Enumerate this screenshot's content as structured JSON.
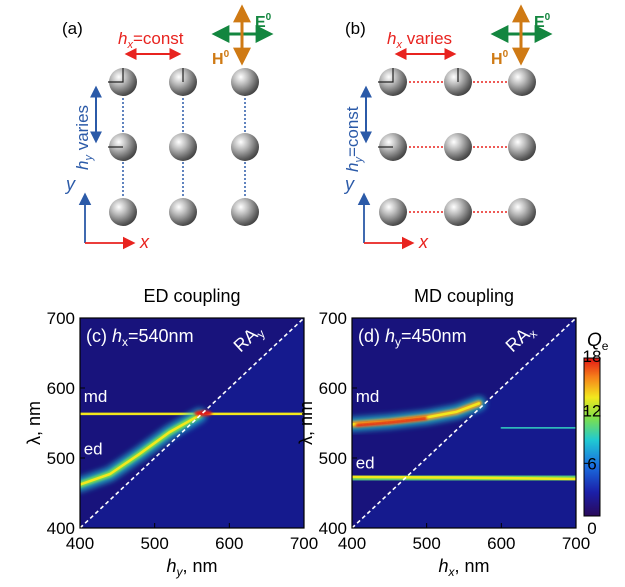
{
  "panels": {
    "a": {
      "label": "(a)",
      "hx_text": "=const",
      "hy_text": " varies",
      "h_symbol": "h",
      "sub_x": "x",
      "sub_y": "y",
      "E_label": "E",
      "H_label": "H",
      "superscript": "0",
      "axis_x": "x",
      "axis_y": "y"
    },
    "b": {
      "label": "(b)",
      "hx_text": " varies",
      "hy_text": "=const",
      "h_symbol": "h",
      "sub_x": "x",
      "sub_y": "y",
      "E_label": "E",
      "H_label": "H",
      "superscript": "0",
      "axis_x": "x",
      "axis_y": "y"
    }
  },
  "colors": {
    "red": "#e8231f",
    "blue": "#2b5aa8",
    "green": "#13863f",
    "orange": "#cf7a14"
  },
  "chart_data": [
    {
      "type": "heatmap",
      "title": "ED coupling",
      "panel_label": "(c)",
      "fixed_param": "=540nm",
      "fixed_symbol": "h",
      "fixed_sub": "x",
      "xlabel_symbol": "h",
      "xlabel_sub": "y",
      "xlabel_unit": ", nm",
      "ylabel": "λ, nm",
      "xlim": [
        400,
        700
      ],
      "ylim": [
        400,
        700
      ],
      "xticks": [
        400,
        500,
        600,
        700
      ],
      "yticks": [
        400,
        500,
        600,
        700
      ],
      "annotations": [
        {
          "text": "md",
          "x": 405,
          "y": 580
        },
        {
          "text": "ed",
          "x": 405,
          "y": 505
        },
        {
          "text": "RA",
          "sub": "y",
          "x": 615,
          "y": 650
        }
      ],
      "bands": [
        {
          "name": "md",
          "points": [
            [
              400,
              563
            ],
            [
              560,
              563
            ],
            [
              700,
              563
            ]
          ]
        },
        {
          "name": "ed",
          "points": [
            [
              400,
              462
            ],
            [
              440,
              477
            ],
            [
              480,
              506
            ],
            [
              520,
              537
            ],
            [
              560,
              561
            ]
          ]
        }
      ]
    },
    {
      "type": "heatmap",
      "title": "MD coupling",
      "panel_label": "(d)",
      "fixed_param": "=450nm",
      "fixed_symbol": "h",
      "fixed_sub": "y",
      "xlabel_symbol": "h",
      "xlabel_sub": "x",
      "xlabel_unit": ", nm",
      "ylabel": "λ, nm",
      "xlim": [
        400,
        700
      ],
      "ylim": [
        400,
        700
      ],
      "xticks": [
        400,
        500,
        600,
        700
      ],
      "yticks": [
        400,
        500,
        600,
        700
      ],
      "annotations": [
        {
          "text": "md",
          "x": 405,
          "y": 580
        },
        {
          "text": "ed",
          "x": 405,
          "y": 485
        },
        {
          "text": "RA",
          "sub": "x",
          "x": 615,
          "y": 650
        }
      ],
      "bands": [
        {
          "name": "md",
          "points": [
            [
              400,
              548
            ],
            [
              450,
              552
            ],
            [
              500,
              558
            ],
            [
              540,
              566
            ],
            [
              570,
              578
            ]
          ]
        },
        {
          "name": "ed",
          "points": [
            [
              400,
              473
            ],
            [
              550,
              472
            ],
            [
              700,
              470
            ]
          ]
        },
        {
          "name": "weak",
          "points": [
            [
              600,
              543
            ],
            [
              700,
              543
            ]
          ]
        }
      ]
    }
  ],
  "colorbar": {
    "label": "Q",
    "label_sub": "e",
    "ticks": [
      0,
      6,
      12,
      18
    ],
    "range": [
      0,
      18
    ]
  }
}
